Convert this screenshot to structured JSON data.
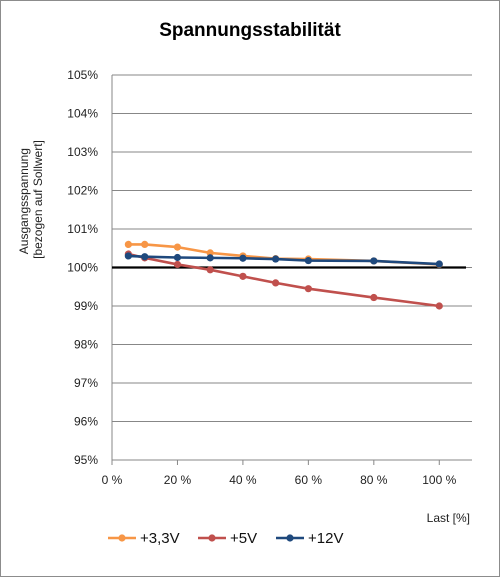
{
  "chart_data": {
    "type": "line",
    "title": "Spannungsstabilität",
    "xlabel": "Last [%]",
    "ylabel_lines": [
      "Ausgangsspannung",
      "[bezogen auf Sollwert]"
    ],
    "xlim": [
      0,
      110
    ],
    "ylim": [
      95,
      105
    ],
    "x_ticks": [
      0,
      20,
      40,
      60,
      80,
      100
    ],
    "x_tick_labels": [
      "0 %",
      "20 %",
      "40 %",
      "60 %",
      "80 %",
      "100 %"
    ],
    "y_ticks": [
      95,
      96,
      97,
      98,
      99,
      100,
      101,
      102,
      103,
      104,
      105
    ],
    "y_tick_labels": [
      "95%",
      "96%",
      "97%",
      "98%",
      "99%",
      "100%",
      "101%",
      "102%",
      "103%",
      "104%",
      "105%"
    ],
    "grid": "horizontal",
    "legend_position": "bottom",
    "reference_line": {
      "y": 100,
      "color": "#000000"
    },
    "series": [
      {
        "name": "+3,3V",
        "color": "#F79646",
        "x": [
          5,
          10,
          20,
          30,
          40,
          50,
          60,
          80,
          100
        ],
        "y": [
          100.6,
          100.6,
          100.53,
          100.38,
          100.3,
          100.23,
          100.22,
          100.17,
          100.08
        ]
      },
      {
        "name": "+5V",
        "color": "#C0504D",
        "x": [
          5,
          10,
          20,
          30,
          40,
          50,
          60,
          80,
          100
        ],
        "y": [
          100.35,
          100.25,
          100.08,
          99.94,
          99.77,
          99.6,
          99.45,
          99.22,
          99.0
        ]
      },
      {
        "name": "+12V",
        "color": "#1F497D",
        "x": [
          5,
          10,
          20,
          30,
          40,
          50,
          60,
          80,
          100
        ],
        "y": [
          100.3,
          100.28,
          100.26,
          100.25,
          100.24,
          100.22,
          100.18,
          100.17,
          100.09
        ]
      }
    ]
  }
}
